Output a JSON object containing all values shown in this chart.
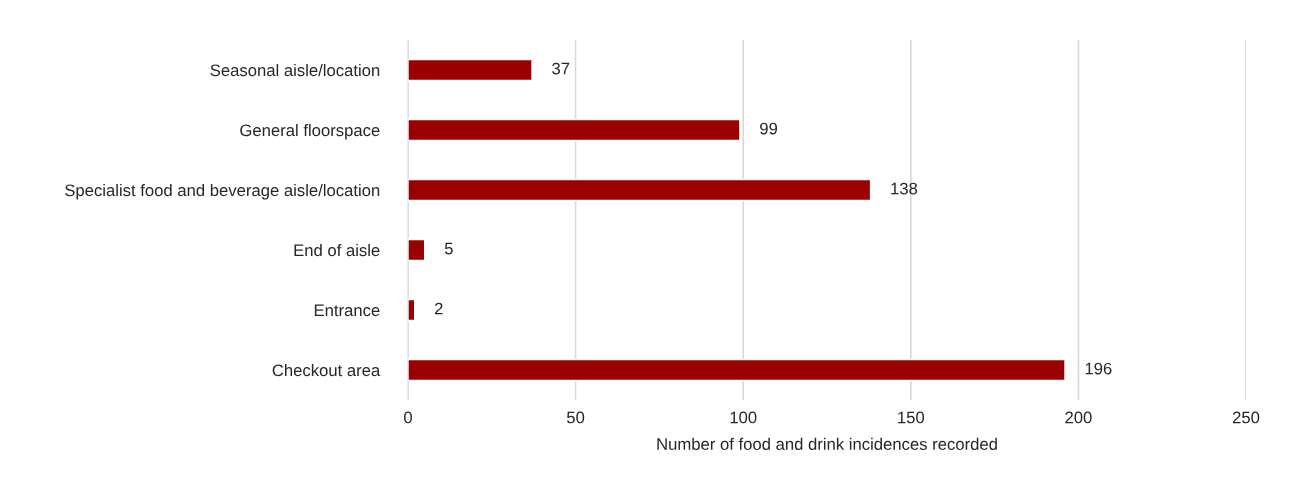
{
  "chart_data": {
    "type": "bar",
    "orientation": "horizontal",
    "xlabel": "Number of food and drink incidences recorded",
    "categories": [
      "Seasonal aisle/location",
      "General floorspace",
      "Specialist food and beverage aisle/location",
      "End of aisle",
      "Entrance",
      "Checkout area"
    ],
    "values": [
      37,
      99,
      138,
      5,
      2,
      196
    ],
    "color": "#9b0000",
    "xlim": [
      0,
      250
    ],
    "xticks": [
      0,
      50,
      100,
      150,
      200,
      250
    ],
    "grid": "x",
    "data_labels": true,
    "legend": false
  }
}
